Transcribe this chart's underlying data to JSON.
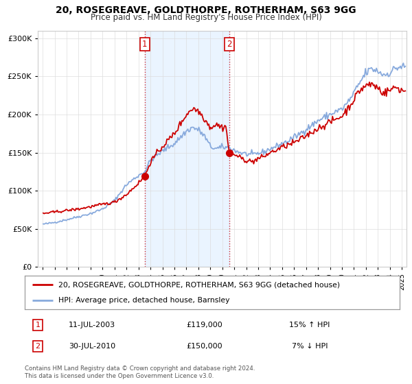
{
  "title": "20, ROSEGREAVE, GOLDTHORPE, ROTHERHAM, S63 9GG",
  "subtitle": "Price paid vs. HM Land Registry's House Price Index (HPI)",
  "legend_line1": "20, ROSEGREAVE, GOLDTHORPE, ROTHERHAM, S63 9GG (detached house)",
  "legend_line2": "HPI: Average price, detached house, Barnsley",
  "footnote": "Contains HM Land Registry data © Crown copyright and database right 2024.\nThis data is licensed under the Open Government Licence v3.0.",
  "sale1_date": "11-JUL-2003",
  "sale1_price": "£119,000",
  "sale1_hpi": "15% ↑ HPI",
  "sale2_date": "30-JUL-2010",
  "sale2_price": "£150,000",
  "sale2_hpi": "7% ↓ HPI",
  "sale1_x": 2003.53,
  "sale1_y": 119000,
  "sale2_x": 2010.58,
  "sale2_y": 150000,
  "vline1_x": 2003.53,
  "vline2_x": 2010.58,
  "ylim": [
    0,
    310000
  ],
  "xlim_start": 1994.6,
  "xlim_end": 2025.4,
  "red_color": "#cc0000",
  "blue_color": "#88aadd",
  "background_fill": "#ddeeff",
  "marker_size": 7
}
